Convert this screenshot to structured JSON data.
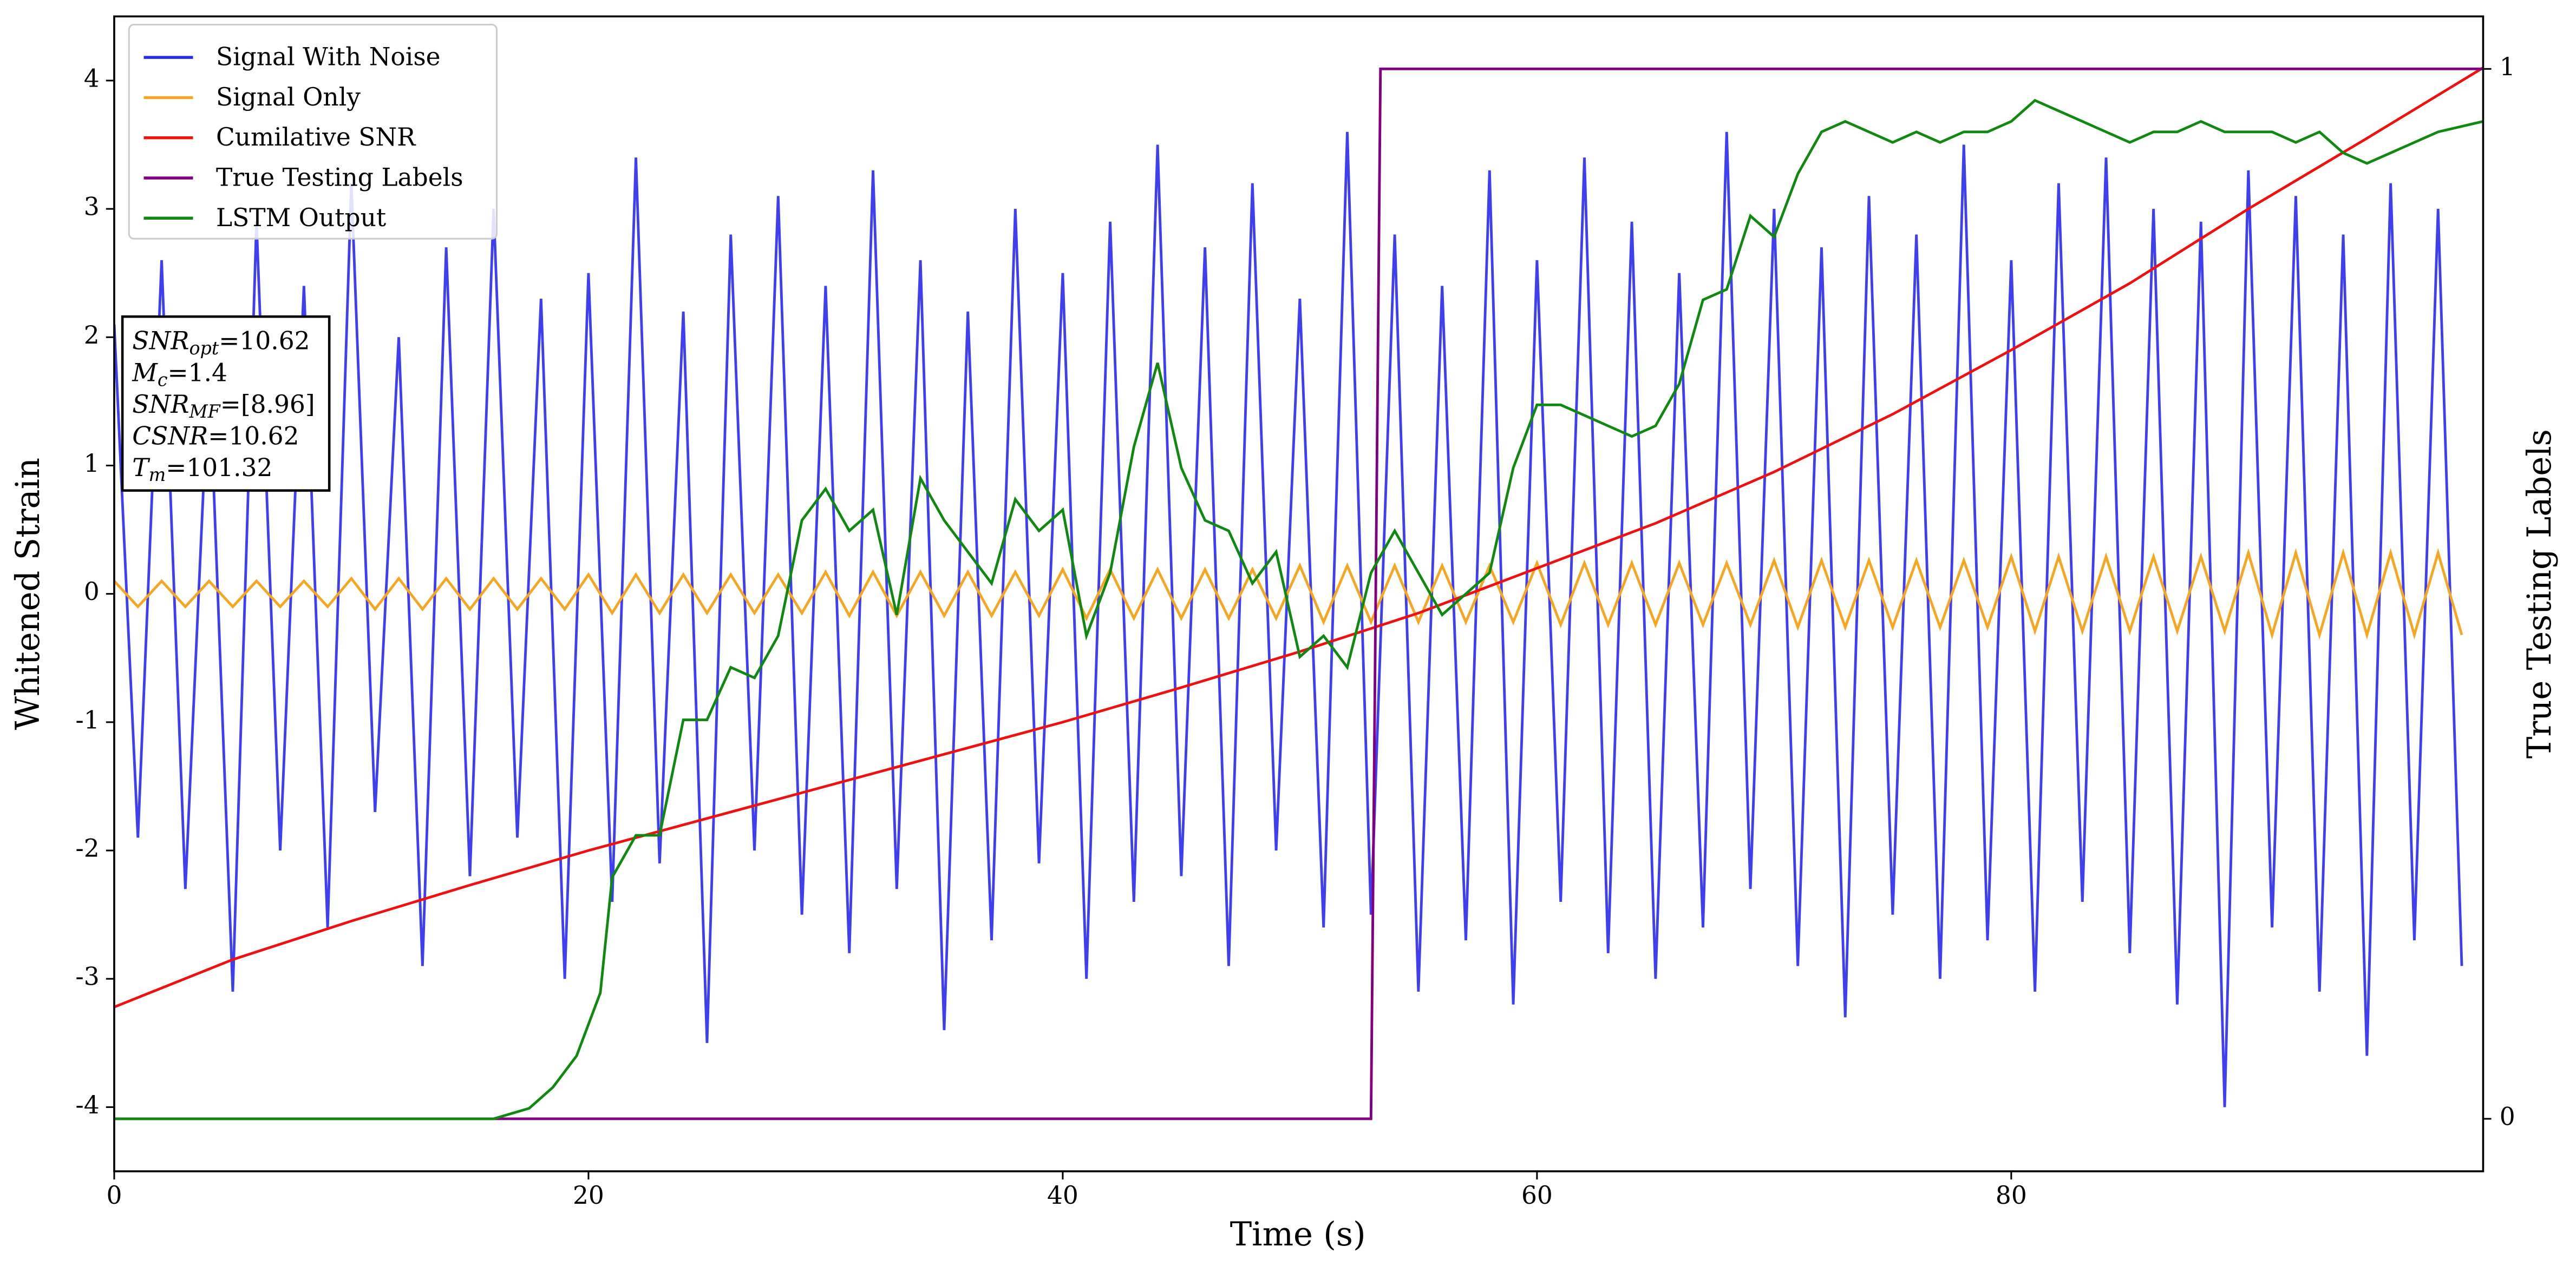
{
  "chart_data": {
    "type": "line",
    "xlabel": "Time (s)",
    "ylabel": "Whitened Strain",
    "y2label": "True Testing Labels",
    "xlim": [
      0,
      99.9
    ],
    "ylim": [
      -4.5,
      4.5
    ],
    "y2lim": [
      -0.05,
      1.05
    ],
    "xticks": [
      0,
      20,
      40,
      60,
      80
    ],
    "yticks": [
      -4,
      -3,
      -2,
      -1,
      0,
      1,
      2,
      3,
      4
    ],
    "y2ticks": [
      0,
      1
    ],
    "legend": "upper left",
    "annotation": [
      {
        "var": "SNR",
        "sub": "opt",
        "text": "=10.62"
      },
      {
        "var": "M",
        "sub": "c",
        "text": "=1.4"
      },
      {
        "var": "SNR",
        "sub": "MF",
        "text": "=[8.96]"
      },
      {
        "var": "CSNR",
        "text": "=10.62"
      },
      {
        "var": "T",
        "sub": "m",
        "text": "=101.32"
      }
    ],
    "series": [
      {
        "name": "Signal With Noise",
        "color": "#2a2aee",
        "x": [
          0,
          1,
          2,
          3,
          4,
          5,
          6,
          7,
          8,
          9,
          10,
          11,
          12,
          13,
          14,
          15,
          16,
          17,
          18,
          19,
          20,
          21,
          22,
          23,
          24,
          25,
          26,
          27,
          28,
          29,
          30,
          31,
          32,
          33,
          34,
          35,
          36,
          37,
          38,
          39,
          40,
          41,
          42,
          43,
          44,
          45,
          46,
          47,
          48,
          49,
          50,
          51,
          52,
          53,
          54,
          55,
          56,
          57,
          58,
          59,
          60,
          61,
          62,
          63,
          64,
          65,
          66,
          67,
          68,
          69,
          70,
          71,
          72,
          73,
          74,
          75,
          76,
          77,
          78,
          79,
          80,
          81,
          82,
          83,
          84,
          85,
          86,
          87,
          88,
          89,
          90,
          91,
          92,
          93,
          94,
          95,
          96,
          97,
          98,
          99
        ],
        "values": [
          2.1,
          -1.9,
          2.6,
          -2.3,
          1.8,
          -3.1,
          2.9,
          -2.0,
          2.4,
          -2.6,
          3.2,
          -1.7,
          2.0,
          -2.9,
          2.7,
          -2.2,
          3.0,
          -1.9,
          2.3,
          -3.0,
          2.5,
          -2.4,
          3.4,
          -2.1,
          2.2,
          -3.5,
          2.8,
          -2.0,
          3.1,
          -2.5,
          2.4,
          -2.8,
          3.3,
          -2.3,
          2.6,
          -3.4,
          2.2,
          -2.7,
          3.0,
          -2.1,
          2.5,
          -3.0,
          2.9,
          -2.4,
          3.5,
          -2.2,
          2.7,
          -2.9,
          3.2,
          -2.0,
          2.3,
          -2.6,
          3.6,
          -2.5,
          2.8,
          -3.1,
          2.4,
          -2.7,
          3.3,
          -3.2,
          2.6,
          -2.4,
          3.4,
          -2.8,
          2.9,
          -3.0,
          2.5,
          -2.6,
          3.6,
          -2.3,
          3.0,
          -2.9,
          2.7,
          -3.3,
          3.1,
          -2.5,
          2.8,
          -3.0,
          3.5,
          -2.7,
          2.6,
          -3.1,
          3.2,
          -2.4,
          3.4,
          -2.8,
          3.0,
          -3.2,
          2.9,
          -4.0,
          3.3,
          -2.6,
          3.1,
          -3.1,
          2.8,
          -3.6,
          3.2,
          -2.7,
          3.0,
          -2.9
        ]
      },
      {
        "name": "Signal Only",
        "color": "#f5a623",
        "x": [
          0,
          1,
          2,
          3,
          4,
          5,
          6,
          7,
          8,
          9,
          10,
          11,
          12,
          13,
          14,
          15,
          16,
          17,
          18,
          19,
          20,
          21,
          22,
          23,
          24,
          25,
          26,
          27,
          28,
          29,
          30,
          31,
          32,
          33,
          34,
          35,
          36,
          37,
          38,
          39,
          40,
          41,
          42,
          43,
          44,
          45,
          46,
          47,
          48,
          49,
          50,
          51,
          52,
          53,
          54,
          55,
          56,
          57,
          58,
          59,
          60,
          61,
          62,
          63,
          64,
          65,
          66,
          67,
          68,
          69,
          70,
          71,
          72,
          73,
          74,
          75,
          76,
          77,
          78,
          79,
          80,
          81,
          82,
          83,
          84,
          85,
          86,
          87,
          88,
          89,
          90,
          91,
          92,
          93,
          94,
          95,
          96,
          97,
          98,
          99
        ],
        "values": [
          0.1,
          -0.1,
          0.1,
          -0.1,
          0.1,
          -0.1,
          0.1,
          -0.1,
          0.1,
          -0.1,
          0.12,
          -0.12,
          0.12,
          -0.12,
          0.12,
          -0.12,
          0.12,
          -0.12,
          0.12,
          -0.12,
          0.15,
          -0.15,
          0.15,
          -0.15,
          0.15,
          -0.15,
          0.15,
          -0.15,
          0.15,
          -0.15,
          0.17,
          -0.17,
          0.17,
          -0.17,
          0.17,
          -0.17,
          0.17,
          -0.17,
          0.17,
          -0.17,
          0.19,
          -0.19,
          0.19,
          -0.19,
          0.19,
          -0.19,
          0.19,
          -0.19,
          0.19,
          -0.19,
          0.22,
          -0.22,
          0.22,
          -0.22,
          0.22,
          -0.22,
          0.22,
          -0.22,
          0.22,
          -0.22,
          0.24,
          -0.24,
          0.24,
          -0.24,
          0.24,
          -0.24,
          0.24,
          -0.24,
          0.24,
          -0.24,
          0.26,
          -0.26,
          0.26,
          -0.26,
          0.26,
          -0.26,
          0.26,
          -0.26,
          0.26,
          -0.26,
          0.29,
          -0.29,
          0.29,
          -0.29,
          0.29,
          -0.29,
          0.29,
          -0.29,
          0.29,
          -0.29,
          0.32,
          -0.32,
          0.32,
          -0.32,
          0.32,
          -0.32,
          0.32,
          -0.32,
          0.32,
          -0.32
        ]
      },
      {
        "name": "Cumilative SNR",
        "color": "#ee1111",
        "x": [
          0,
          5,
          10,
          15,
          20,
          25,
          30,
          35,
          40,
          45,
          50,
          55,
          60,
          65,
          70,
          75,
          80,
          85,
          90,
          95,
          99.9
        ],
        "values": [
          -3.22,
          -2.85,
          -2.55,
          -2.27,
          -2.0,
          -1.75,
          -1.5,
          -1.25,
          -1.0,
          -0.73,
          -0.45,
          -0.15,
          0.2,
          0.55,
          0.95,
          1.4,
          1.9,
          2.42,
          3.0,
          3.55,
          4.1
        ]
      },
      {
        "name": "True Testing Labels",
        "color": "#800080",
        "axis": "y2",
        "x": [
          0,
          53,
          53.4,
          99.9
        ],
        "values": [
          0,
          0,
          1,
          1
        ]
      },
      {
        "name": "LSTM Output",
        "color": "#118811",
        "axis": "y2",
        "x": [
          0,
          16,
          17.5,
          18.5,
          19.5,
          20.5,
          21,
          22,
          23,
          24,
          25,
          26,
          27,
          28,
          29,
          30,
          31,
          32,
          33,
          34,
          35,
          36,
          37,
          38,
          39,
          40,
          41,
          42,
          43,
          44,
          45,
          46,
          47,
          48,
          49,
          50,
          51,
          52,
          53,
          54,
          55,
          56,
          57,
          58,
          59,
          60,
          61,
          62,
          63,
          64,
          65,
          66,
          67,
          68,
          69,
          70,
          71,
          72,
          73,
          74,
          75,
          76,
          77,
          78,
          79,
          80,
          81,
          82,
          83,
          84,
          85,
          86,
          87,
          88,
          89,
          90,
          91,
          92,
          93,
          94,
          95,
          96,
          97,
          98,
          99.9
        ],
        "values": [
          0,
          0,
          0.01,
          0.03,
          0.06,
          0.12,
          0.23,
          0.27,
          0.27,
          0.38,
          0.38,
          0.43,
          0.42,
          0.46,
          0.57,
          0.6,
          0.56,
          0.58,
          0.48,
          0.61,
          0.57,
          0.54,
          0.51,
          0.59,
          0.56,
          0.58,
          0.46,
          0.52,
          0.64,
          0.72,
          0.62,
          0.57,
          0.56,
          0.51,
          0.54,
          0.44,
          0.46,
          0.43,
          0.52,
          0.56,
          0.52,
          0.48,
          0.5,
          0.52,
          0.62,
          0.68,
          0.68,
          0.67,
          0.66,
          0.65,
          0.66,
          0.7,
          0.78,
          0.79,
          0.86,
          0.84,
          0.9,
          0.94,
          0.95,
          0.94,
          0.93,
          0.94,
          0.93,
          0.94,
          0.94,
          0.95,
          0.97,
          0.96,
          0.95,
          0.94,
          0.93,
          0.94,
          0.94,
          0.95,
          0.94,
          0.94,
          0.94,
          0.93,
          0.94,
          0.92,
          0.91,
          0.92,
          0.93,
          0.94,
          0.95
        ]
      }
    ]
  }
}
